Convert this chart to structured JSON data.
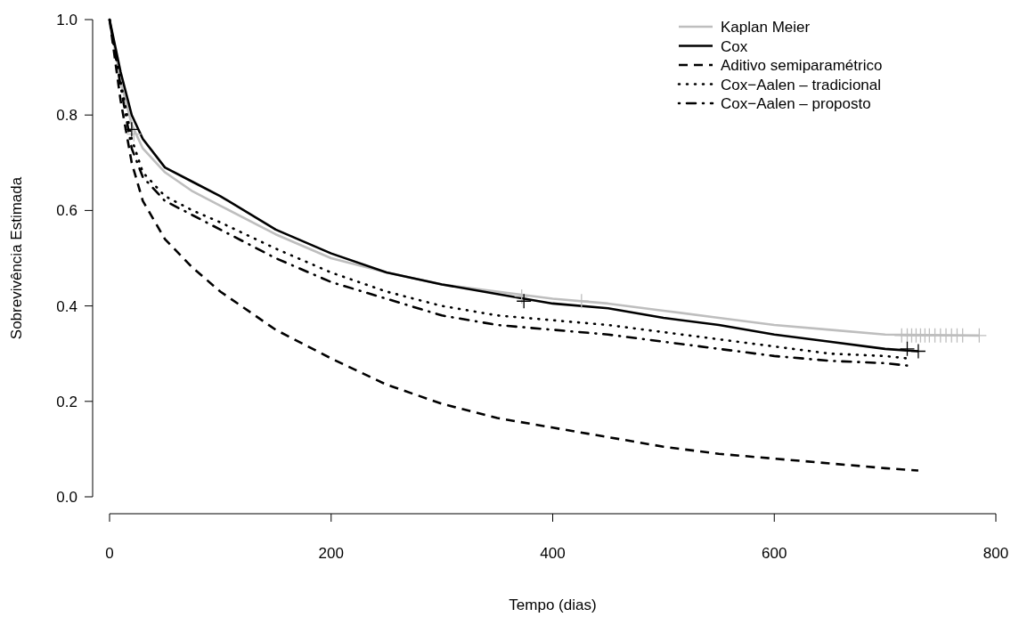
{
  "chart_data": {
    "type": "line",
    "xlabel": "Tempo (dias)",
    "ylabel": "Sobrevivência Estimada",
    "xlim": [
      0,
      800
    ],
    "ylim": [
      0,
      1
    ],
    "xticks": [
      0,
      200,
      400,
      600,
      800
    ],
    "yticks": [
      {
        "value": 0,
        "label": "0.0"
      },
      {
        "value": 0.2,
        "label": "0.2"
      },
      {
        "value": 0.4,
        "label": "0.4"
      },
      {
        "value": 0.6,
        "label": "0.6"
      },
      {
        "value": 0.8,
        "label": "0.8"
      },
      {
        "value": 1,
        "label": "1.0"
      }
    ],
    "grid": false,
    "legend": "top right",
    "series": [
      {
        "name": "Kaplan Meier",
        "color": "#bebebe",
        "line_style": "solid",
        "x": [
          0,
          10,
          20,
          30,
          50,
          75,
          100,
          150,
          200,
          250,
          300,
          350,
          400,
          450,
          500,
          550,
          600,
          650,
          700,
          785
        ],
        "values": [
          1,
          0.87,
          0.78,
          0.73,
          0.68,
          0.64,
          0.61,
          0.55,
          0.5,
          0.47,
          0.445,
          0.43,
          0.415,
          0.405,
          0.39,
          0.375,
          0.36,
          0.35,
          0.34,
          0.338
        ]
      },
      {
        "name": "Cox",
        "color": "#000000",
        "line_style": "solid",
        "x": [
          0,
          10,
          20,
          30,
          50,
          75,
          100,
          150,
          200,
          250,
          300,
          350,
          400,
          450,
          500,
          550,
          600,
          650,
          700,
          730
        ],
        "values": [
          1,
          0.89,
          0.8,
          0.75,
          0.69,
          0.66,
          0.63,
          0.56,
          0.51,
          0.47,
          0.445,
          0.425,
          0.405,
          0.395,
          0.375,
          0.36,
          0.34,
          0.325,
          0.31,
          0.305
        ]
      },
      {
        "name": "Aditivo semiparamétrico",
        "color": "#000000",
        "line_style": "dashed",
        "x": [
          0,
          10,
          20,
          30,
          50,
          75,
          100,
          150,
          200,
          250,
          300,
          350,
          400,
          450,
          500,
          550,
          600,
          650,
          700,
          730
        ],
        "values": [
          1,
          0.83,
          0.7,
          0.62,
          0.54,
          0.48,
          0.43,
          0.35,
          0.29,
          0.235,
          0.195,
          0.165,
          0.145,
          0.125,
          0.105,
          0.09,
          0.08,
          0.07,
          0.06,
          0.055
        ]
      },
      {
        "name": "Cox−Aalen – tradicional",
        "color": "#000000",
        "line_style": "dotted",
        "x": [
          0,
          10,
          20,
          30,
          50,
          75,
          100,
          150,
          200,
          250,
          300,
          350,
          400,
          450,
          500,
          550,
          600,
          650,
          700,
          720
        ],
        "values": [
          1,
          0.87,
          0.75,
          0.68,
          0.63,
          0.6,
          0.575,
          0.52,
          0.47,
          0.43,
          0.4,
          0.38,
          0.37,
          0.36,
          0.345,
          0.33,
          0.315,
          0.3,
          0.295,
          0.29
        ]
      },
      {
        "name": "Cox−Aalen – proposto",
        "color": "#000000",
        "line_style": "dashdot",
        "x": [
          0,
          10,
          20,
          30,
          50,
          75,
          100,
          150,
          200,
          250,
          300,
          350,
          400,
          450,
          500,
          550,
          600,
          650,
          700,
          720
        ],
        "values": [
          1,
          0.86,
          0.73,
          0.67,
          0.62,
          0.59,
          0.56,
          0.5,
          0.45,
          0.415,
          0.38,
          0.36,
          0.35,
          0.34,
          0.325,
          0.31,
          0.295,
          0.285,
          0.28,
          0.275
        ]
      },
      {
        "type": "scatter",
        "marker": "cross",
        "color": "#bebebe",
        "x": [
          22,
          372,
          426,
          715,
          720,
          724,
          728,
          732,
          736,
          740,
          745,
          750,
          755,
          760,
          765,
          770,
          785
        ],
        "values": [
          0.76,
          0.42,
          0.41,
          0.338,
          0.338,
          0.338,
          0.338,
          0.338,
          0.338,
          0.338,
          0.338,
          0.338,
          0.338,
          0.338,
          0.338,
          0.338,
          0.338
        ]
      },
      {
        "type": "scatter",
        "marker": "cross",
        "color": "#000000",
        "x": [
          20,
          374,
          720,
          730
        ],
        "values": [
          0.77,
          0.41,
          0.31,
          0.305
        ]
      }
    ]
  }
}
